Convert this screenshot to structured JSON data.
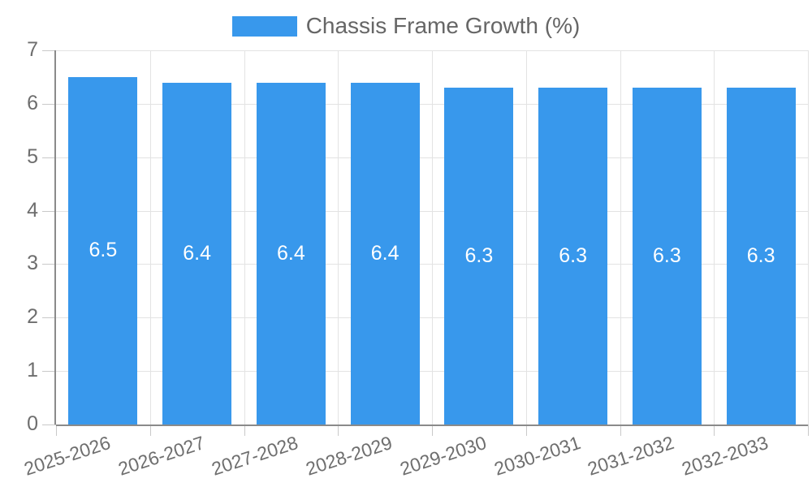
{
  "chart_data": {
    "type": "bar",
    "title": "Chassis Frame Growth (%)",
    "categories": [
      "2025-2026",
      "2026-2027",
      "2027-2028",
      "2028-2029",
      "2029-2030",
      "2030-2031",
      "2031-2032",
      "2032-2033"
    ],
    "values": [
      6.5,
      6.4,
      6.4,
      6.4,
      6.3,
      6.3,
      6.3,
      6.3
    ],
    "bar_labels": [
      "6.5",
      "6.4",
      "6.4",
      "6.4",
      "6.3",
      "6.3",
      "6.3",
      "6.3"
    ],
    "xlabel": "",
    "ylabel": "",
    "ylim": [
      0,
      7
    ],
    "y_ticks": [
      0,
      1,
      2,
      3,
      4,
      5,
      6,
      7
    ],
    "grid": true,
    "legend_position": "top-center",
    "colors": {
      "bar": "#3898ec",
      "bar_label": "#ffffff",
      "axis_text": "#6e6e6e",
      "legend_text": "#666666",
      "axis_line": "#8a8a8a",
      "gridline": "#e3e3e3",
      "tick": "#c9c9c9",
      "background": "#ffffff"
    }
  }
}
